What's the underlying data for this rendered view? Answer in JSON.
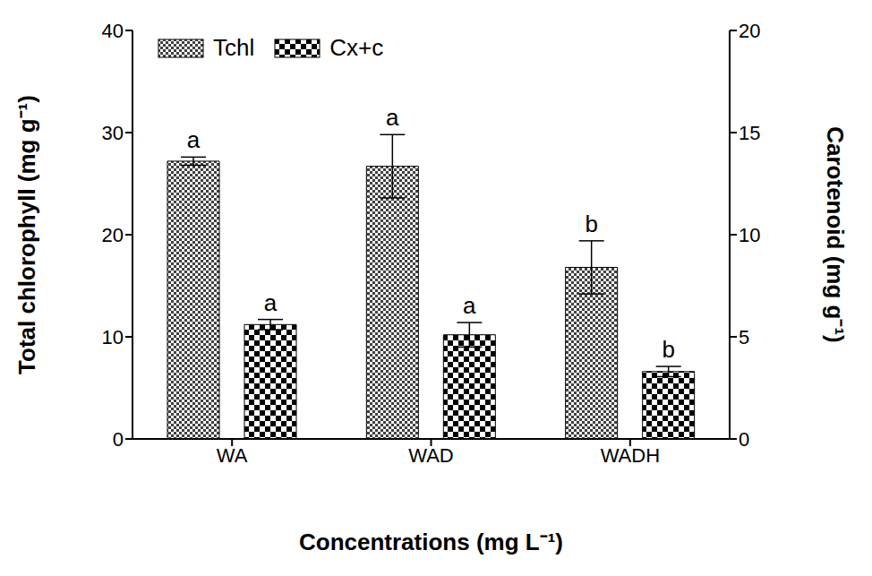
{
  "chart_data": {
    "type": "bar",
    "categories": [
      "WA",
      "WAD",
      "WADH"
    ],
    "xlabel": "Concentrations (mg L⁻¹)",
    "ylabel": "Total chlorophyll (mg g⁻¹)",
    "y2label": "Carotenoid (mg g⁻¹)",
    "ylim": [
      0,
      40
    ],
    "yticks": [
      0,
      10,
      20,
      30,
      40
    ],
    "y2lim": [
      0,
      20
    ],
    "y2ticks": [
      0,
      5,
      10,
      15,
      20
    ],
    "legend": "upper left",
    "series": [
      {
        "name": "Tchl",
        "color": "#000000",
        "values": [
          27.2,
          26.7,
          16.8
        ],
        "errors": [
          0.4,
          3.1,
          2.6
        ],
        "letters": [
          "a",
          "a",
          "b"
        ]
      },
      {
        "name": "Cx+c",
        "axis": "y2",
        "color": "#000000",
        "values": [
          5.6,
          5.1,
          3.3
        ],
        "errors": [
          0.25,
          0.6,
          0.25
        ],
        "letters": [
          "a",
          "a",
          "b"
        ]
      }
    ]
  }
}
